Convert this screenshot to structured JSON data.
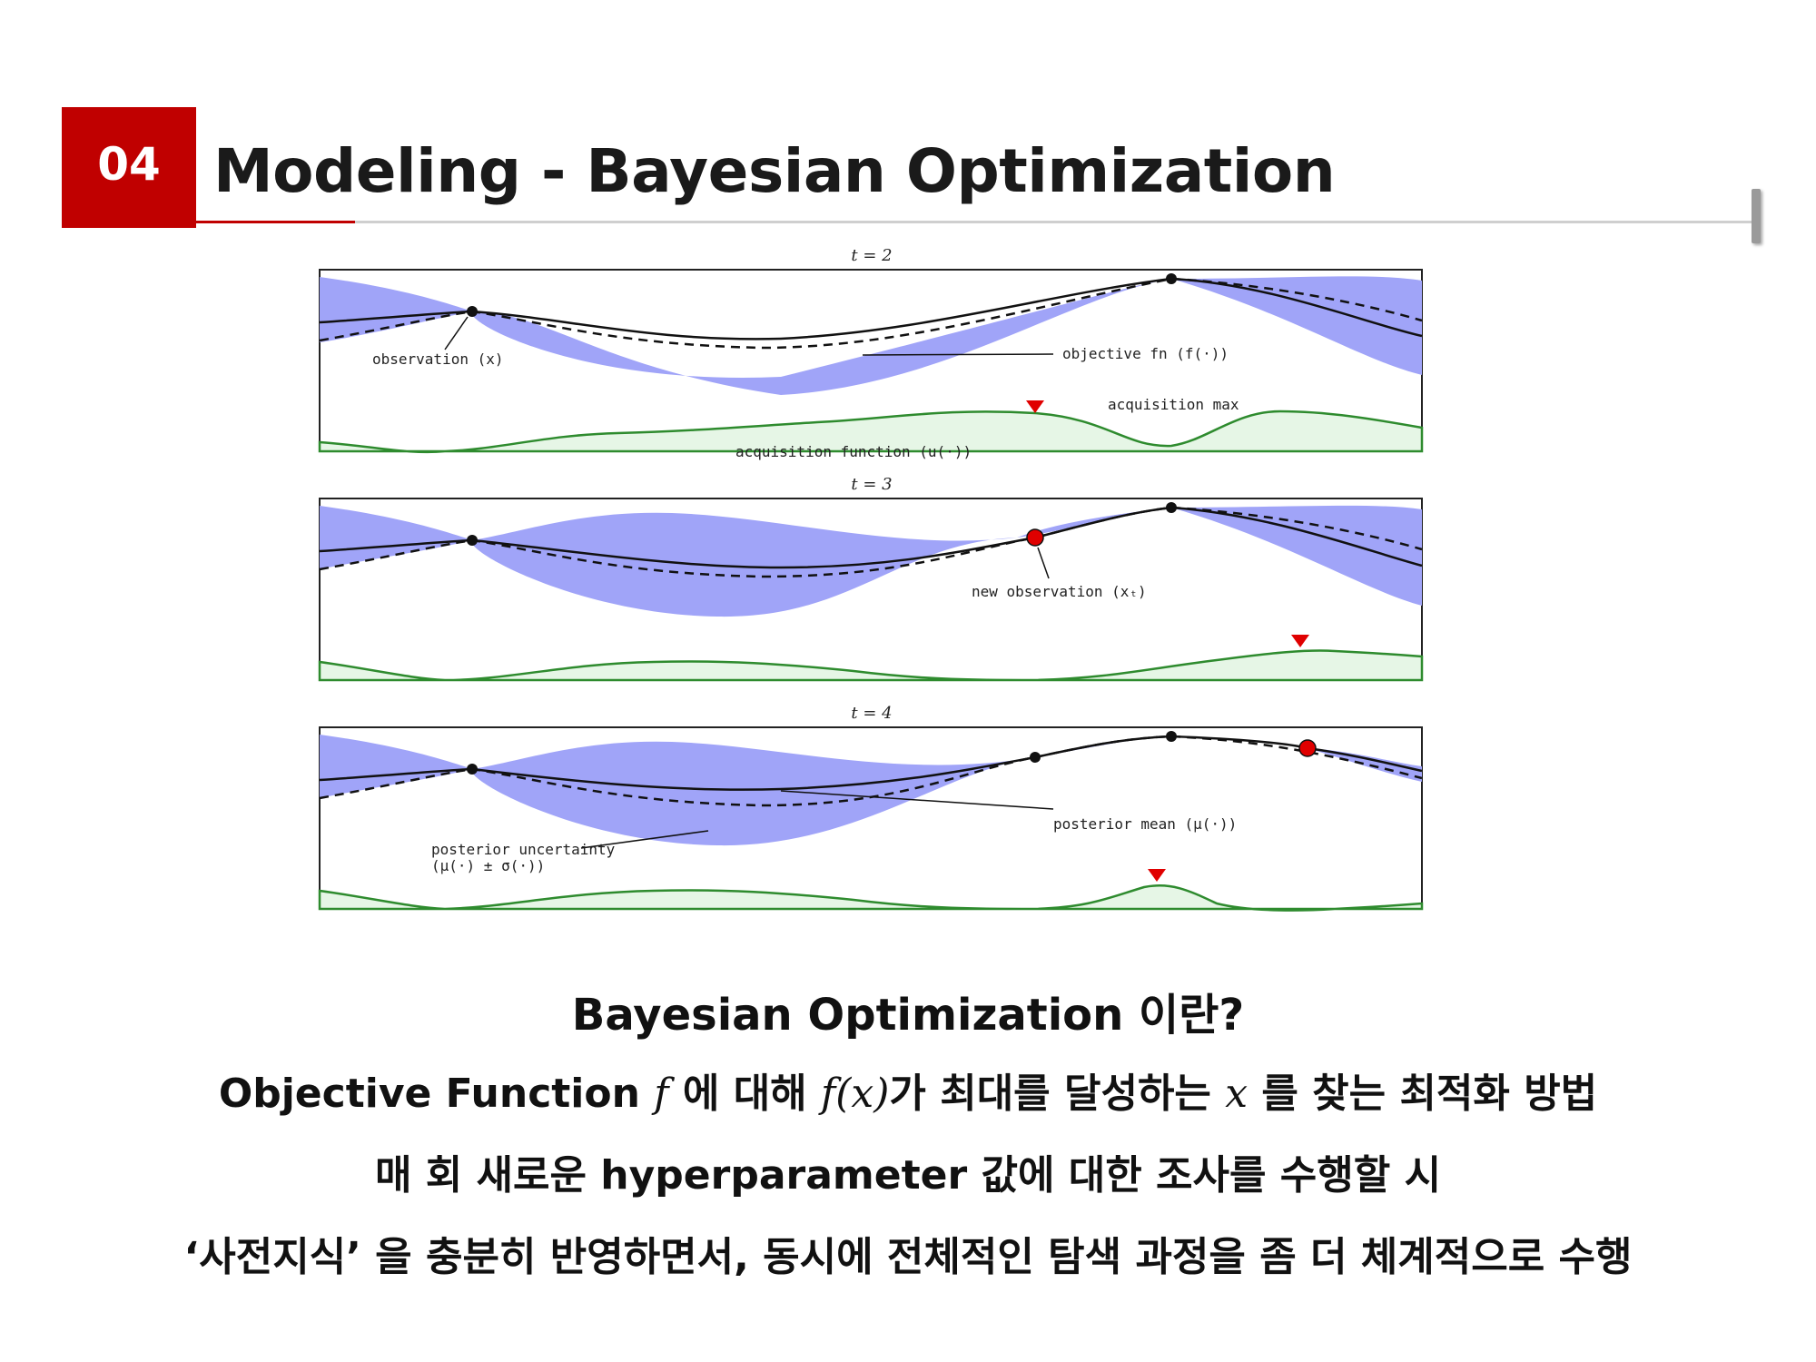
{
  "header": {
    "section_number": "04",
    "title": "Modeling - Bayesian Optimization"
  },
  "figure": {
    "panels": [
      {
        "title": "t = 2",
        "labels": [
          "observation (x)",
          "objective fn (f(·))",
          "acquisition max",
          "acquisition function (u(·))"
        ]
      },
      {
        "title": "t = 3",
        "labels": [
          "new observation (xₜ)"
        ]
      },
      {
        "title": "t = 4",
        "labels": [
          "posterior mean (μ(·))",
          "posterior uncertainty",
          "(μ(·) ± σ(·))"
        ]
      }
    ],
    "colors": {
      "uncertainty_band": "#a0a4f8",
      "acquisition_fill": "#e6f6e6",
      "acquisition_line": "#2e8b2e",
      "new_observation": "#e00000",
      "acquisition_max_marker": "#e00000"
    }
  },
  "body": {
    "question": "Bayesian Optimization 이란?",
    "line1": {
      "p1": "Objective Function",
      "m1": "f",
      "p2": " 에 대해 ",
      "m2": "f(x)",
      "p3": "가 최대를 달성하는 ",
      "m3": "x",
      "p4": " 를 찾는 최적화 방법"
    },
    "line2": "매 회 새로운 hyperparameter 값에 대한 조사를 수행할 시",
    "line3": "‘사전지식’ 을 충분히 반영하면서, 동시에 전체적인 탐색 과정을 좀 더 체계적으로 수행"
  }
}
